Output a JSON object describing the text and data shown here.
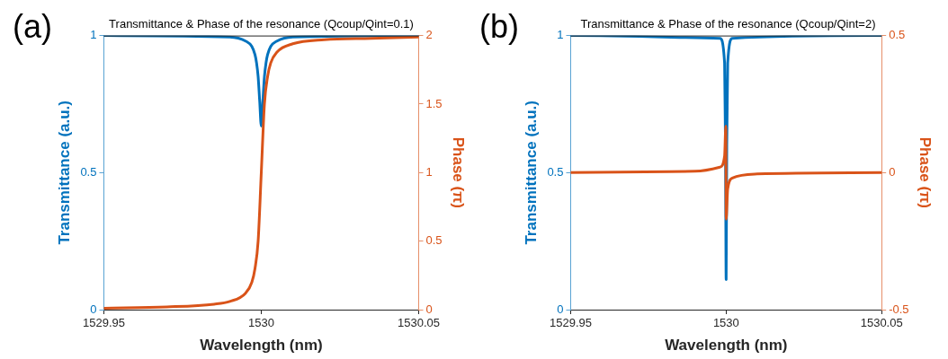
{
  "chart_data": [
    {
      "type": "line",
      "title": "Transmittance & Phase of the resonance (Qcoup/Qint=0.1)",
      "xlabel": "Wavelength (nm)",
      "ylabel": "Transmittance (a.u.)",
      "y2label": "Phase (π)",
      "annotations": [
        "(a)"
      ],
      "xlim": [
        1529.95,
        1530.05
      ],
      "xticks": [
        1529.95,
        1530,
        1530.05
      ],
      "ylim": [
        0,
        1
      ],
      "yticks": [
        0,
        0.5,
        1
      ],
      "y2lim": [
        0,
        2
      ],
      "y2ticks": [
        0,
        0.5,
        1,
        1.5,
        2
      ],
      "grid": false,
      "legend": false,
      "line_style": "solid",
      "marker": "none",
      "series": [
        {
          "color": "#0072bd",
          "x": [
            1529.95,
            1529.99,
            1529.995,
            1529.997,
            1529.998,
            1529.9985,
            1529.999,
            1529.9995,
            1530,
            1530.0005,
            1530.001,
            1530.0015,
            1530.002,
            1530.003,
            1530.005,
            1530.01,
            1530.05
          ],
          "values": [
            1,
            0.995,
            0.98,
            0.96,
            0.93,
            0.9,
            0.85,
            0.76,
            0.67,
            0.76,
            0.85,
            0.9,
            0.93,
            0.96,
            0.98,
            0.995,
            1
          ]
        },
        {
          "color": "#d95319",
          "axis": "y2",
          "x": [
            1529.95,
            1529.97,
            1529.985,
            1529.99,
            1529.995,
            1529.997,
            1529.998,
            1529.999,
            1530,
            1530.001,
            1530.002,
            1530.003,
            1530.005,
            1530.01,
            1530.02,
            1530.035,
            1530.05
          ],
          "values": [
            0.01,
            0.02,
            0.04,
            0.06,
            0.12,
            0.2,
            0.3,
            0.5,
            1,
            1.5,
            1.7,
            1.8,
            1.88,
            1.94,
            1.97,
            1.98,
            1.99
          ]
        }
      ]
    },
    {
      "type": "line",
      "title": "Transmittance & Phase of the resonance (Qcoup/Qint=2)",
      "xlabel": "Wavelength (nm)",
      "ylabel": "Transmittance (a.u.)",
      "y2label": "Phase (π)",
      "annotations": [
        "(b)"
      ],
      "xlim": [
        1529.95,
        1530.05
      ],
      "xticks": [
        1529.95,
        1530,
        1530.05
      ],
      "ylim": [
        0,
        1
      ],
      "yticks": [
        0,
        0.5,
        1
      ],
      "y2lim": [
        -0.5,
        0.5
      ],
      "y2ticks": [
        -0.5,
        0,
        0.5
      ],
      "grid": false,
      "legend": false,
      "line_style": "solid",
      "marker": "none",
      "series": [
        {
          "color": "#0072bd",
          "x": [
            1529.95,
            1529.998,
            1529.9995,
            1529.9998,
            1530,
            1530.0002,
            1530.0005,
            1530.002,
            1530.05
          ],
          "values": [
            1,
            0.99,
            0.9,
            0.6,
            0.11,
            0.6,
            0.9,
            0.99,
            1
          ]
        },
        {
          "color": "#d95319",
          "axis": "y2",
          "x": [
            1529.95,
            1529.99,
            1529.998,
            1529.9995,
            1529.9999,
            1530,
            1530.0005,
            1530.002,
            1530.01,
            1530.05
          ],
          "values": [
            0,
            0.005,
            0.02,
            0.06,
            0.17,
            -0.17,
            -0.06,
            -0.02,
            -0.005,
            0
          ]
        }
      ]
    }
  ]
}
